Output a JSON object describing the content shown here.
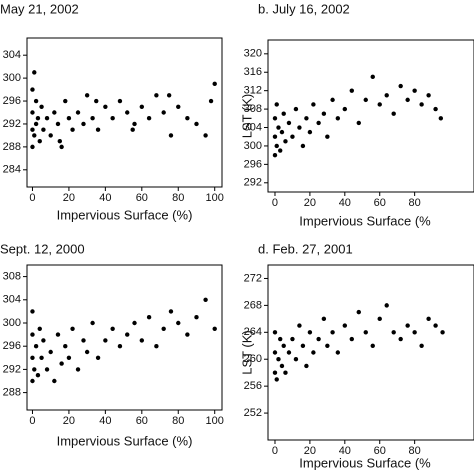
{
  "chart_data": [
    {
      "type": "scatter",
      "title": "May 21, 2002",
      "xlabel": "Impervious Surface (%)",
      "color": "#000000",
      "xlim": [
        -3,
        104
      ],
      "ylim": [
        281,
        307
      ],
      "xticks": [
        0,
        20,
        40,
        60,
        80,
        100
      ],
      "yticks": [
        284,
        288,
        292,
        296,
        300,
        304
      ],
      "x": [
        0,
        0,
        0,
        0,
        1,
        1,
        2,
        2,
        3,
        4,
        5,
        6,
        8,
        10,
        12,
        14,
        16,
        18,
        20,
        22,
        25,
        28,
        30,
        33,
        36,
        40,
        44,
        48,
        52,
        56,
        60,
        64,
        68,
        72,
        76,
        80,
        85,
        90,
        95,
        98,
        100,
        15,
        35,
        55,
        75
      ],
      "values": [
        288,
        291,
        294,
        298,
        301,
        290,
        292,
        296,
        293,
        289,
        295,
        291,
        293,
        290,
        294,
        292,
        288,
        296,
        293,
        291,
        294,
        292,
        297,
        293,
        291,
        295,
        293,
        296,
        294,
        292,
        295,
        293,
        297,
        294,
        290,
        295,
        293,
        292,
        290,
        296,
        299,
        289,
        296,
        291,
        297
      ]
    },
    {
      "type": "scatter",
      "title": "b. July 16, 2002",
      "xlabel": "Impervious Surface (%",
      "ylabel": "LST (K)",
      "color": "#000000",
      "xlim": [
        -4,
        114
      ],
      "ylim": [
        290,
        323
      ],
      "xticks": [
        0,
        20,
        40,
        60,
        80
      ],
      "yticks": [
        292,
        296,
        300,
        304,
        308,
        312,
        316,
        320
      ],
      "x": [
        0,
        0,
        0,
        1,
        1,
        2,
        3,
        4,
        5,
        6,
        8,
        10,
        12,
        14,
        16,
        18,
        20,
        22,
        25,
        28,
        30,
        33,
        36,
        40,
        44,
        48,
        52,
        56,
        60,
        64,
        68,
        72,
        76,
        80,
        84,
        88,
        92,
        95
      ],
      "values": [
        298,
        302,
        306,
        300,
        309,
        304,
        299,
        303,
        307,
        301,
        305,
        302,
        308,
        304,
        300,
        306,
        303,
        309,
        305,
        307,
        302,
        310,
        306,
        308,
        312,
        305,
        310,
        315,
        309,
        311,
        307,
        313,
        310,
        312,
        309,
        311,
        308,
        306
      ]
    },
    {
      "type": "scatter",
      "title": "Sept. 12, 2000",
      "xlabel": "Impervious Surface (%)",
      "color": "#000000",
      "xlim": [
        -3,
        104
      ],
      "ylim": [
        285,
        310
      ],
      "xticks": [
        0,
        20,
        40,
        60,
        80,
        100
      ],
      "yticks": [
        288,
        292,
        296,
        300,
        304,
        308
      ],
      "x": [
        0,
        0,
        0,
        0,
        1,
        2,
        3,
        4,
        5,
        6,
        8,
        10,
        12,
        14,
        16,
        18,
        20,
        22,
        25,
        28,
        30,
        33,
        36,
        40,
        44,
        48,
        52,
        56,
        60,
        64,
        68,
        72,
        76,
        80,
        85,
        90,
        95,
        100
      ],
      "values": [
        290,
        294,
        298,
        302,
        292,
        296,
        291,
        299,
        294,
        297,
        292,
        295,
        290,
        298,
        293,
        296,
        294,
        299,
        292,
        297,
        295,
        300,
        294,
        297,
        299,
        296,
        298,
        300,
        297,
        301,
        296,
        299,
        302,
        300,
        298,
        301,
        304,
        299
      ]
    },
    {
      "type": "scatter",
      "title": "d. Feb. 27, 2001",
      "xlabel": "Impervious Surface (%",
      "ylabel": "LST (K)",
      "color": "#000000",
      "xlim": [
        -4,
        114
      ],
      "ylim": [
        248,
        274
      ],
      "xticks": [
        0,
        20,
        40,
        60,
        80
      ],
      "yticks": [
        252,
        256,
        260,
        264,
        268,
        272
      ],
      "x": [
        0,
        0,
        0,
        1,
        2,
        3,
        4,
        5,
        6,
        8,
        10,
        12,
        14,
        16,
        18,
        20,
        22,
        25,
        28,
        30,
        33,
        36,
        40,
        44,
        48,
        52,
        56,
        60,
        64,
        68,
        72,
        76,
        80,
        84,
        88,
        92,
        96
      ],
      "values": [
        258,
        261,
        264,
        257,
        260,
        263,
        259,
        262,
        258,
        261,
        263,
        260,
        265,
        262,
        259,
        264,
        261,
        263,
        266,
        262,
        264,
        261,
        265,
        263,
        267,
        264,
        262,
        266,
        268,
        264,
        263,
        265,
        264,
        262,
        266,
        265,
        264
      ]
    }
  ]
}
